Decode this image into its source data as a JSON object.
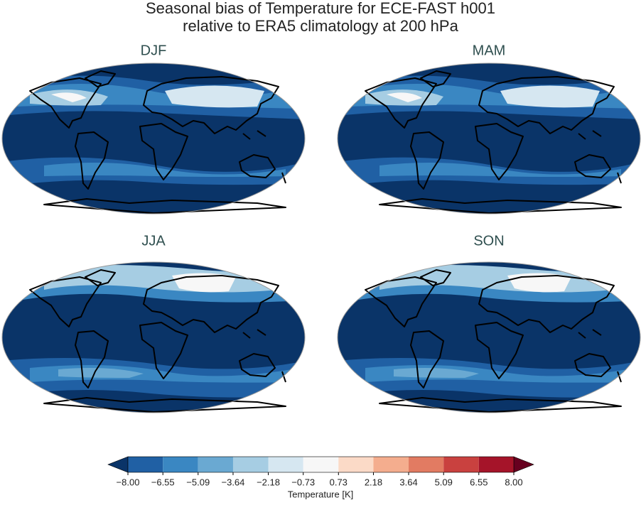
{
  "header": {
    "title_lines": [
      "Seasonal bias of Temperature for ECE-FAST h001",
      "relative to ERA5 climatology at 200 hPa"
    ]
  },
  "panels": [
    {
      "title": "DJF"
    },
    {
      "title": "MAM"
    },
    {
      "title": "JJA"
    },
    {
      "title": "SON"
    }
  ],
  "colorbar": {
    "label": "Temperature [K]",
    "lim": [
      -8,
      8
    ],
    "ticks": [
      {
        "value": -8,
        "label": "−8.00"
      },
      {
        "value": -6.55,
        "label": "−6.55"
      },
      {
        "value": -5.09,
        "label": "−5.09"
      },
      {
        "value": -3.64,
        "label": "−3.64"
      },
      {
        "value": -2.18,
        "label": "−2.18"
      },
      {
        "value": -0.73,
        "label": "−0.73"
      },
      {
        "value": 0.73,
        "label": "0.73"
      },
      {
        "value": 2.18,
        "label": "2.18"
      },
      {
        "value": 3.64,
        "label": "3.64"
      },
      {
        "value": 5.09,
        "label": "5.09"
      },
      {
        "value": 6.55,
        "label": "6.55"
      },
      {
        "value": 8,
        "label": "8.00"
      }
    ],
    "colors": [
      "#2060a4",
      "#3a87c2",
      "#6aa9d2",
      "#a6cde3",
      "#d6e7f1",
      "#f7f7f7",
      "#fbdac7",
      "#f4ad8e",
      "#e27b62",
      "#c9413f",
      "#a51429"
    ],
    "under_color": "#0a3468",
    "over_color": "#67001f"
  }
}
